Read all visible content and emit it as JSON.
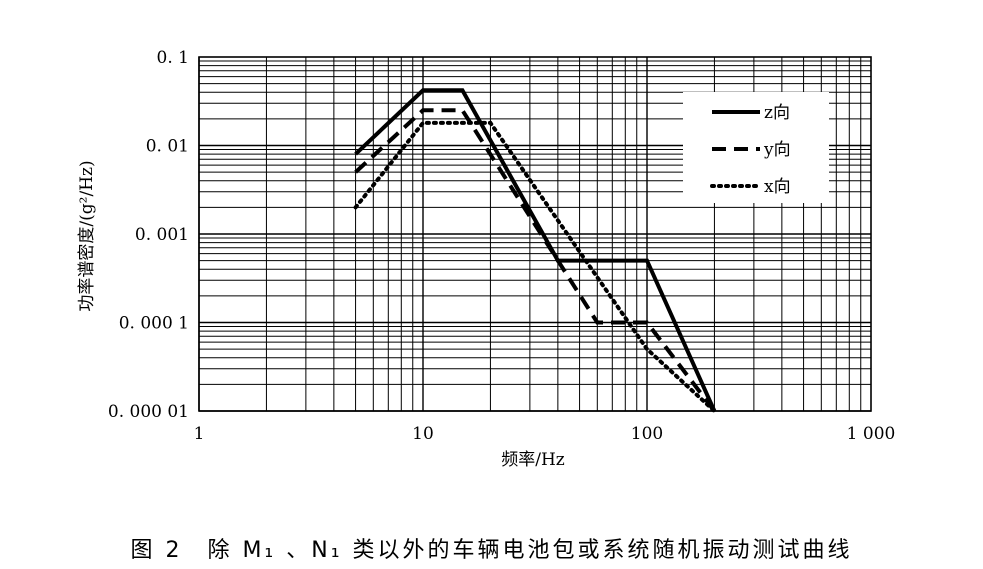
{
  "chart_data": {
    "type": "line",
    "caption": "图 2　除 M₁ 、N₁ 类以外的车辆电池包或系统随机振动测试曲线",
    "xlabel": "频率/Hz",
    "ylabel": "功率谱密度/(g²/Hz)",
    "x_scale": "log",
    "y_scale": "log",
    "xlim": [
      1,
      1000
    ],
    "ylim": [
      1e-05,
      0.1
    ],
    "x_ticks": [
      {
        "value": 1,
        "label": "1"
      },
      {
        "value": 10,
        "label": "10"
      },
      {
        "value": 100,
        "label": "100"
      },
      {
        "value": 1000,
        "label": "1 000"
      }
    ],
    "y_ticks": [
      {
        "value": 0.1,
        "label": "0. 1"
      },
      {
        "value": 0.01,
        "label": "0. 01"
      },
      {
        "value": 0.001,
        "label": "0. 001"
      },
      {
        "value": 0.0001,
        "label": "0. 000 1"
      },
      {
        "value": 1e-05,
        "label": "0. 000 01"
      }
    ],
    "grid": true,
    "legend_position": "top-right",
    "series": [
      {
        "name": "z向",
        "axis_letter": "z",
        "style": "solid",
        "x": [
          5,
          10,
          15,
          40,
          100,
          200
        ],
        "y": [
          0.008,
          0.042,
          0.042,
          0.0005,
          0.0005,
          1e-05
        ]
      },
      {
        "name": "y向",
        "axis_letter": "y",
        "style": "dashed",
        "x": [
          5,
          10,
          15,
          40,
          60,
          100,
          200
        ],
        "y": [
          0.005,
          0.025,
          0.025,
          0.0005,
          0.0001,
          0.0001,
          1e-05
        ]
      },
      {
        "name": "x向",
        "axis_letter": "x",
        "style": "dotted",
        "x": [
          5,
          10,
          20,
          100,
          200
        ],
        "y": [
          0.002,
          0.018,
          0.018,
          5e-05,
          1e-05
        ]
      }
    ]
  }
}
